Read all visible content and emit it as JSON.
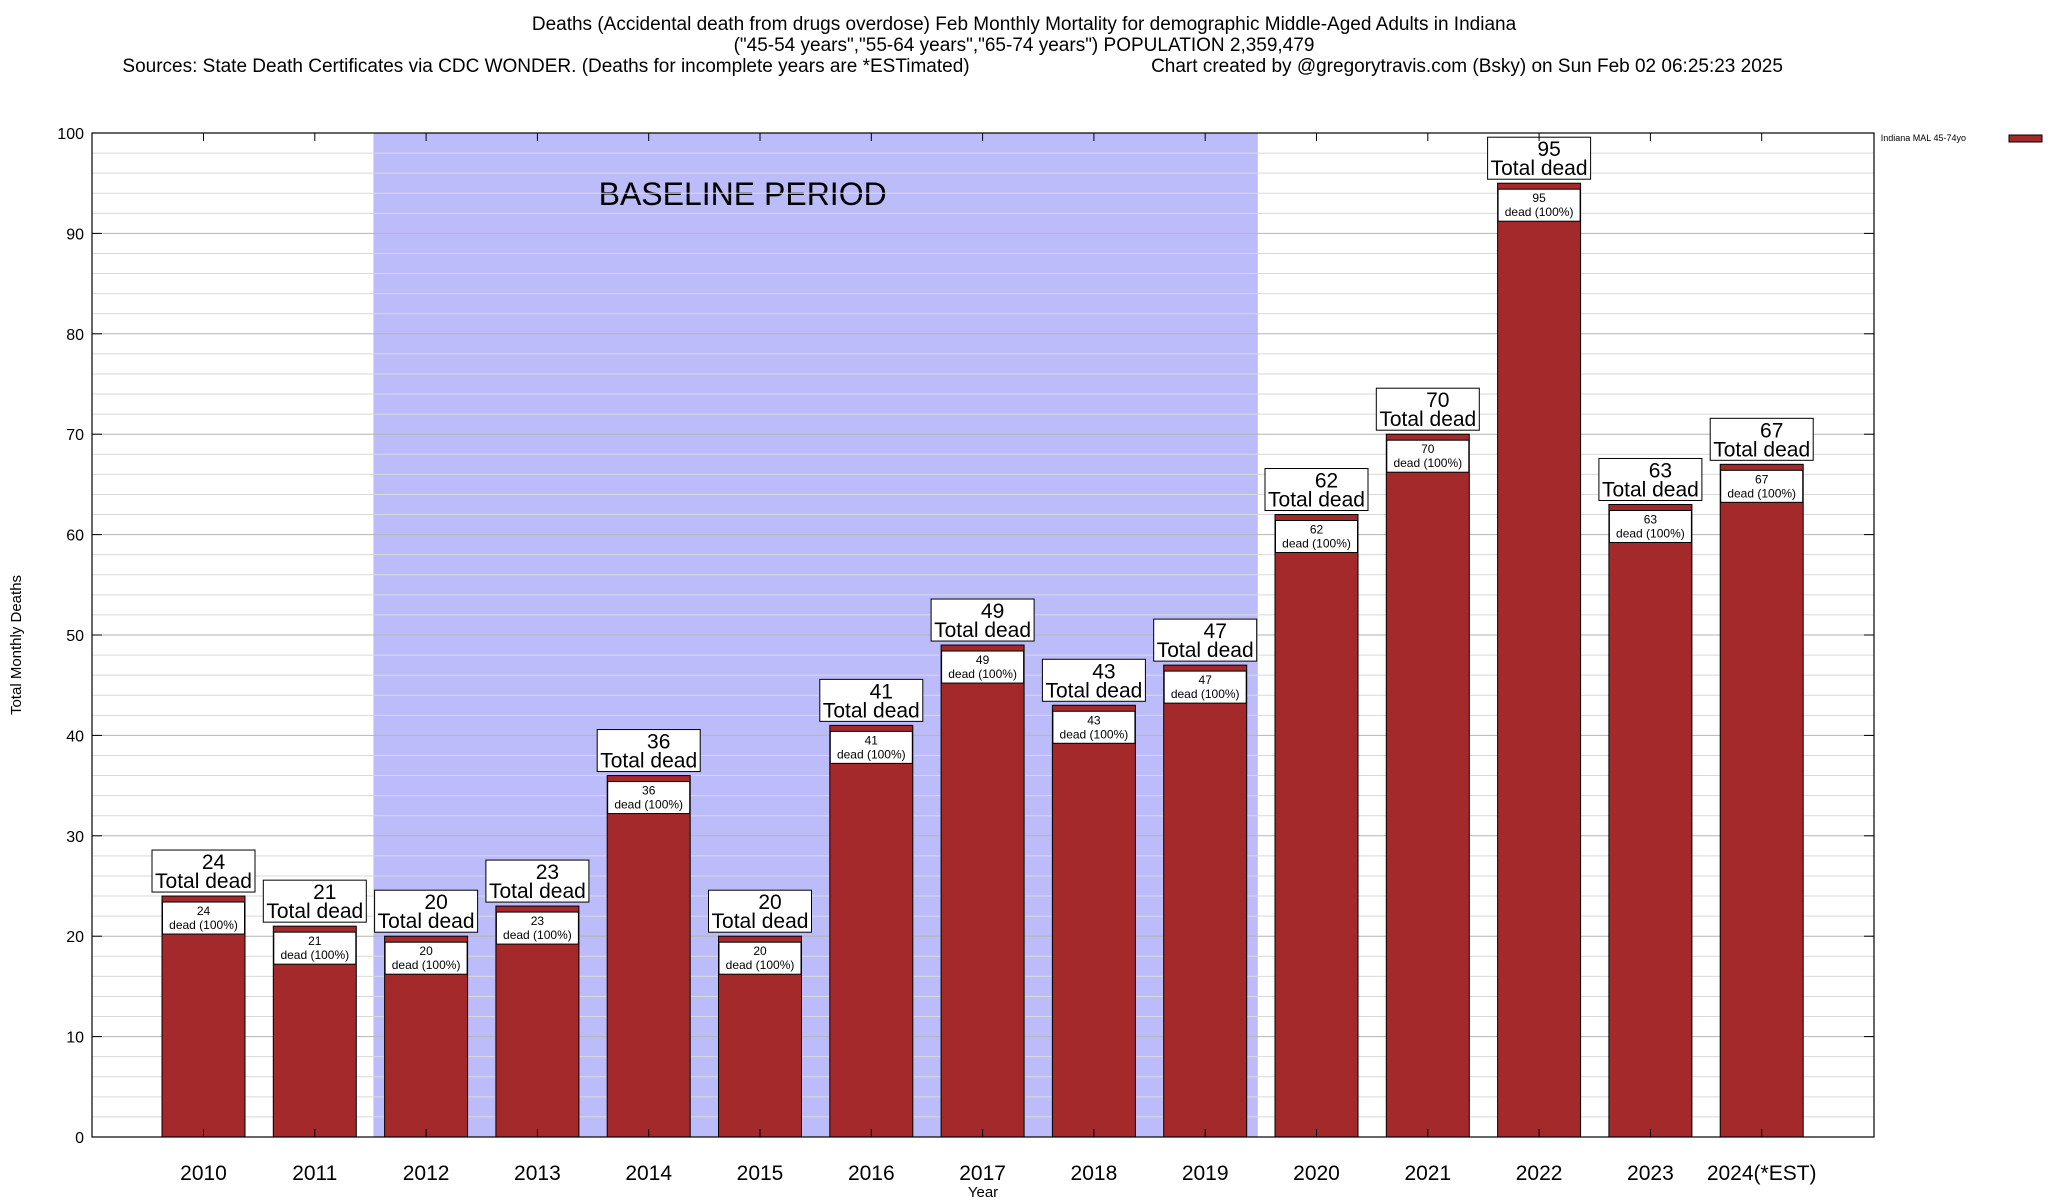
{
  "header": {
    "title_line1": "Deaths (Accidental death from drugs overdose) Feb Monthly Mortality for demographic Middle-Aged Adults in Indiana",
    "title_line2": "(\"45-54 years\",\"55-64 years\",\"65-74 years\") POPULATION 2,359,479",
    "sources": "Sources: State Death Certificates via CDC WONDER. (Deaths for incomplete years are *ESTimated)",
    "credit": "Chart created by @gregorytravis.com (Bsky) on Sun Feb 02 06:25:23 2025"
  },
  "colors": {
    "bar_fill": "#a4292b",
    "bar_stroke": "#000000",
    "baseline_band": "#bcbcfa",
    "grid_major": "#b5b5b5",
    "grid_minor": "#d9d9d9"
  },
  "chart_data": {
    "type": "bar",
    "title": "Deaths (Accidental death from drugs overdose) Feb Monthly Mortality for demographic Middle-Aged Adults in Indiana",
    "xlabel": "Year",
    "ylabel": "Total Monthly Deaths",
    "ylim": [
      0,
      100
    ],
    "yticks": [
      "0",
      "10",
      "20",
      "30",
      "40",
      "50",
      "60",
      "70",
      "80",
      "90",
      "100"
    ],
    "grid": true,
    "legend_position": "top-right",
    "categories": [
      "2010",
      "2011",
      "2012",
      "2013",
      "2014",
      "2015",
      "2016",
      "2017",
      "2018",
      "2019",
      "2020",
      "2021",
      "2022",
      "2023",
      "2024(*EST)"
    ],
    "series": [
      {
        "name": "Indiana MAL 45-74yo",
        "values": [
          24,
          21,
          20,
          23,
          36,
          20,
          41,
          49,
          43,
          47,
          62,
          70,
          95,
          63,
          67
        ]
      }
    ],
    "top_labels_num": [
      "24",
      "21",
      "20",
      "23",
      "36",
      "20",
      "41",
      "49",
      "43",
      "47",
      "62",
      "70",
      "95",
      "63",
      "67"
    ],
    "top_label_text": "Total dead",
    "inner_labels_num": [
      "24",
      "21",
      "20",
      "23",
      "36",
      "20",
      "41",
      "49",
      "43",
      "47",
      "62",
      "70",
      "95",
      "63",
      "67"
    ],
    "inner_label_text": "dead (100%)",
    "baseline_band": {
      "label": "BASELINE PERIOD",
      "from_category": "2012",
      "to_category": "2019"
    }
  }
}
